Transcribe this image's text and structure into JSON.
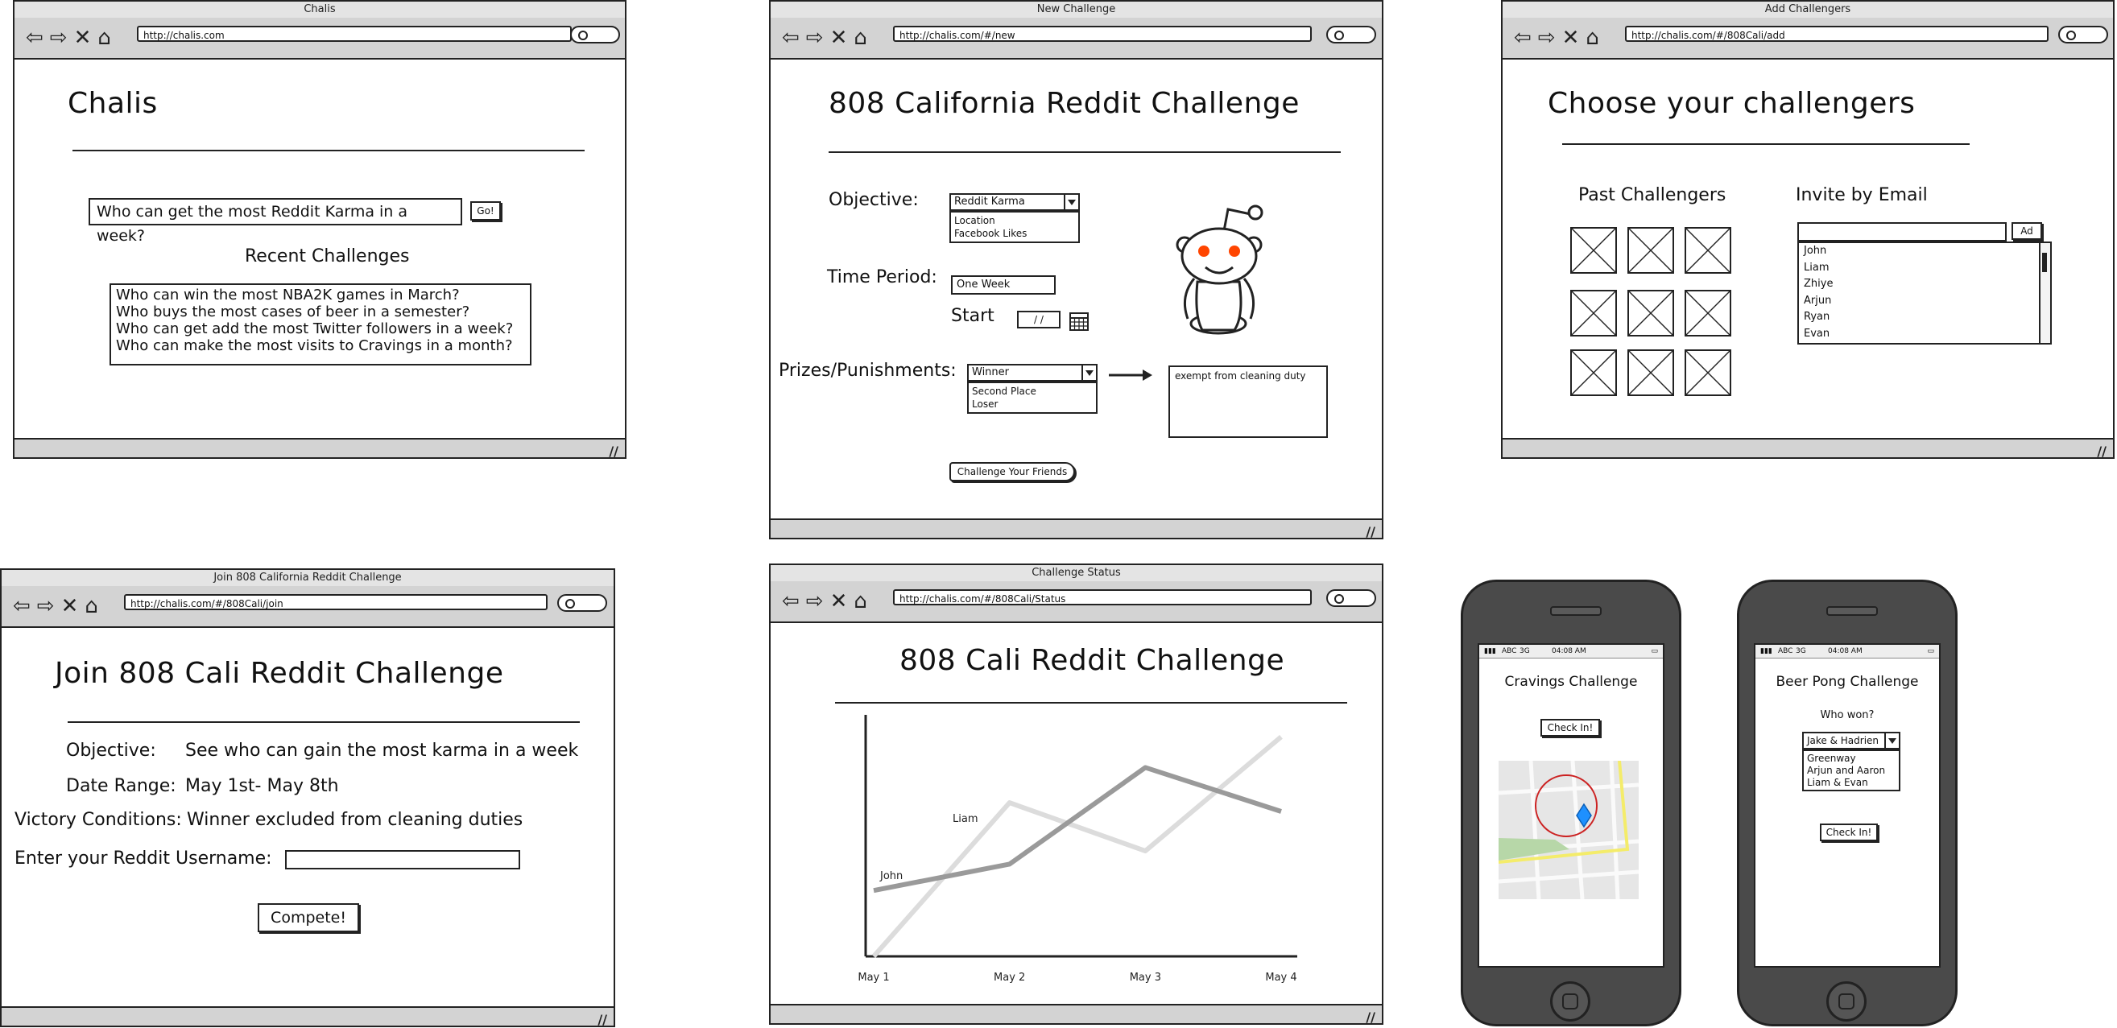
{
  "home": {
    "window_title": "Chalis",
    "url": "http://chalis.com",
    "title": "Chalis",
    "search_value": "Who can get the most Reddit Karma in a week?",
    "go_label": "Go!",
    "recent_heading": "Recent Challenges",
    "recent": [
      "Who can win the most NBA2K games in March?",
      "Who buys the most cases of beer in a semester?",
      "Who can get add the most Twitter followers in a week?",
      "Who can make the most visits to Cravings in a month?"
    ]
  },
  "new_challenge": {
    "window_title": "New Challenge",
    "url": "http://chalis.com/#/new",
    "title": "808 California Reddit Challenge",
    "objective_label": "Objective:",
    "objective_selected": "Reddit Karma",
    "objective_options": [
      "Location",
      "Facebook Likes"
    ],
    "time_period_label": "Time Period:",
    "time_period_value": "One Week",
    "start_label": "Start",
    "start_value": "/ /",
    "prizes_label": "Prizes/Punishments:",
    "prize_selected": "Winner",
    "prize_options": [
      "Second Place",
      "Loser"
    ],
    "prize_text": "exempt from cleaning duty",
    "challenge_button": "Challenge Your Friends"
  },
  "add_challengers": {
    "window_title": "Add Challengers",
    "url": "http://chalis.com/#/808Cali/add",
    "title": "Choose your challengers",
    "past_heading": "Past Challengers",
    "invite_heading": "Invite by Email",
    "add_button": "Ad",
    "invite_list": [
      "John",
      "Liam",
      "Zhiye",
      "Arjun",
      "Ryan",
      "Evan"
    ]
  },
  "join": {
    "window_title": "Join 808 California Reddit Challenge",
    "url": "http://chalis.com/#/808Cali/join",
    "title": "Join 808 Cali Reddit Challenge",
    "objective_label": "Objective:",
    "objective_value": "See who can gain the most karma in a week",
    "date_label": "Date Range:",
    "date_value": "May 1st- May 8th",
    "victory_label": "Victory Conditions:",
    "victory_value": "Winner excluded from cleaning duties",
    "username_label": "Enter your Reddit Username:",
    "compete_button": "Compete!"
  },
  "status": {
    "window_title": "Challenge Status",
    "url": "http://chalis.com/#/808Cali/Status",
    "title": "808 Cali Reddit Challenge"
  },
  "chart_data": {
    "type": "line",
    "categories": [
      "May 1",
      "May 2",
      "May 3",
      "May 4"
    ],
    "series": [
      {
        "name": "John",
        "values": [
          30,
          42,
          86,
          66
        ],
        "color": "#9a9a9a"
      },
      {
        "name": "Liam",
        "values": [
          0,
          70,
          48,
          100
        ],
        "color": "#dcdcdc"
      }
    ],
    "ylim": [
      0,
      110
    ],
    "grid": false,
    "legend": "inline labels"
  },
  "cravings_phone": {
    "carrier": "ABC",
    "network": "3G",
    "time": "04:08 AM",
    "title": "Cravings Challenge",
    "check_in": "Check In!"
  },
  "beer_phone": {
    "carrier": "ABC",
    "network": "3G",
    "time": "04:08 AM",
    "title": "Beer Pong Challenge",
    "question": "Who won?",
    "selected": "Jake & Hadrien",
    "options": [
      "Greenway",
      "Arjun and Aaron",
      "Liam & Evan"
    ],
    "check_in": "Check In!"
  },
  "colors": {
    "chrome": "#d3d3d3",
    "phone_body": "#4a4a4a",
    "alien_eye": "#ff4500",
    "map_pin": "#1e90ff"
  }
}
